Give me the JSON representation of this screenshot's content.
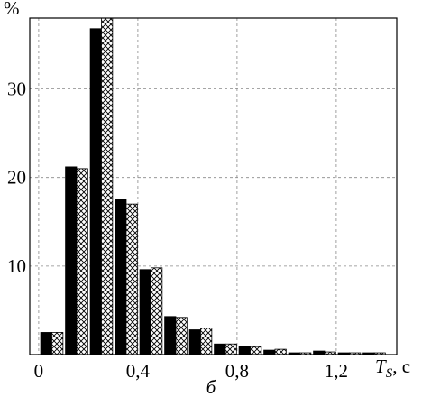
{
  "chart_data": {
    "type": "histogram",
    "y_label": "%",
    "x_label": "T",
    "x_label_sub": "S",
    "x_label_suffix": ", c",
    "caption": "б",
    "bins": [
      0,
      0.1,
      0.2,
      0.3,
      0.4,
      0.5,
      0.6,
      0.7,
      0.8,
      0.9,
      1.0,
      1.1,
      1.2,
      1.3,
      1.4
    ],
    "series": [
      {
        "color": "#000000",
        "hatch": false,
        "values": [
          2.5,
          21.2,
          36.8,
          17.5,
          9.6,
          4.3,
          2.8,
          1.2,
          0.9,
          0.5,
          0.2,
          0.4,
          0.2,
          0.2
        ]
      },
      {
        "color": "#ffffff",
        "hatch": true,
        "values": [
          2.5,
          21.0,
          38,
          17.0,
          9.8,
          4.2,
          3.0,
          1.2,
          0.9,
          0.6,
          0.2,
          0.3,
          0.2,
          0.2
        ]
      }
    ],
    "xlim": [
      -0.036,
      1.444
    ],
    "ylim": [
      0,
      38
    ],
    "xticks": [
      0,
      {
        "value": 0.4,
        "label": "0,4"
      },
      {
        "value": 0.8,
        "label": "0,8"
      },
      {
        "value": 1.2,
        "label": "1,2"
      }
    ],
    "yticks": [
      10,
      20,
      30
    ],
    "grid": true
  }
}
